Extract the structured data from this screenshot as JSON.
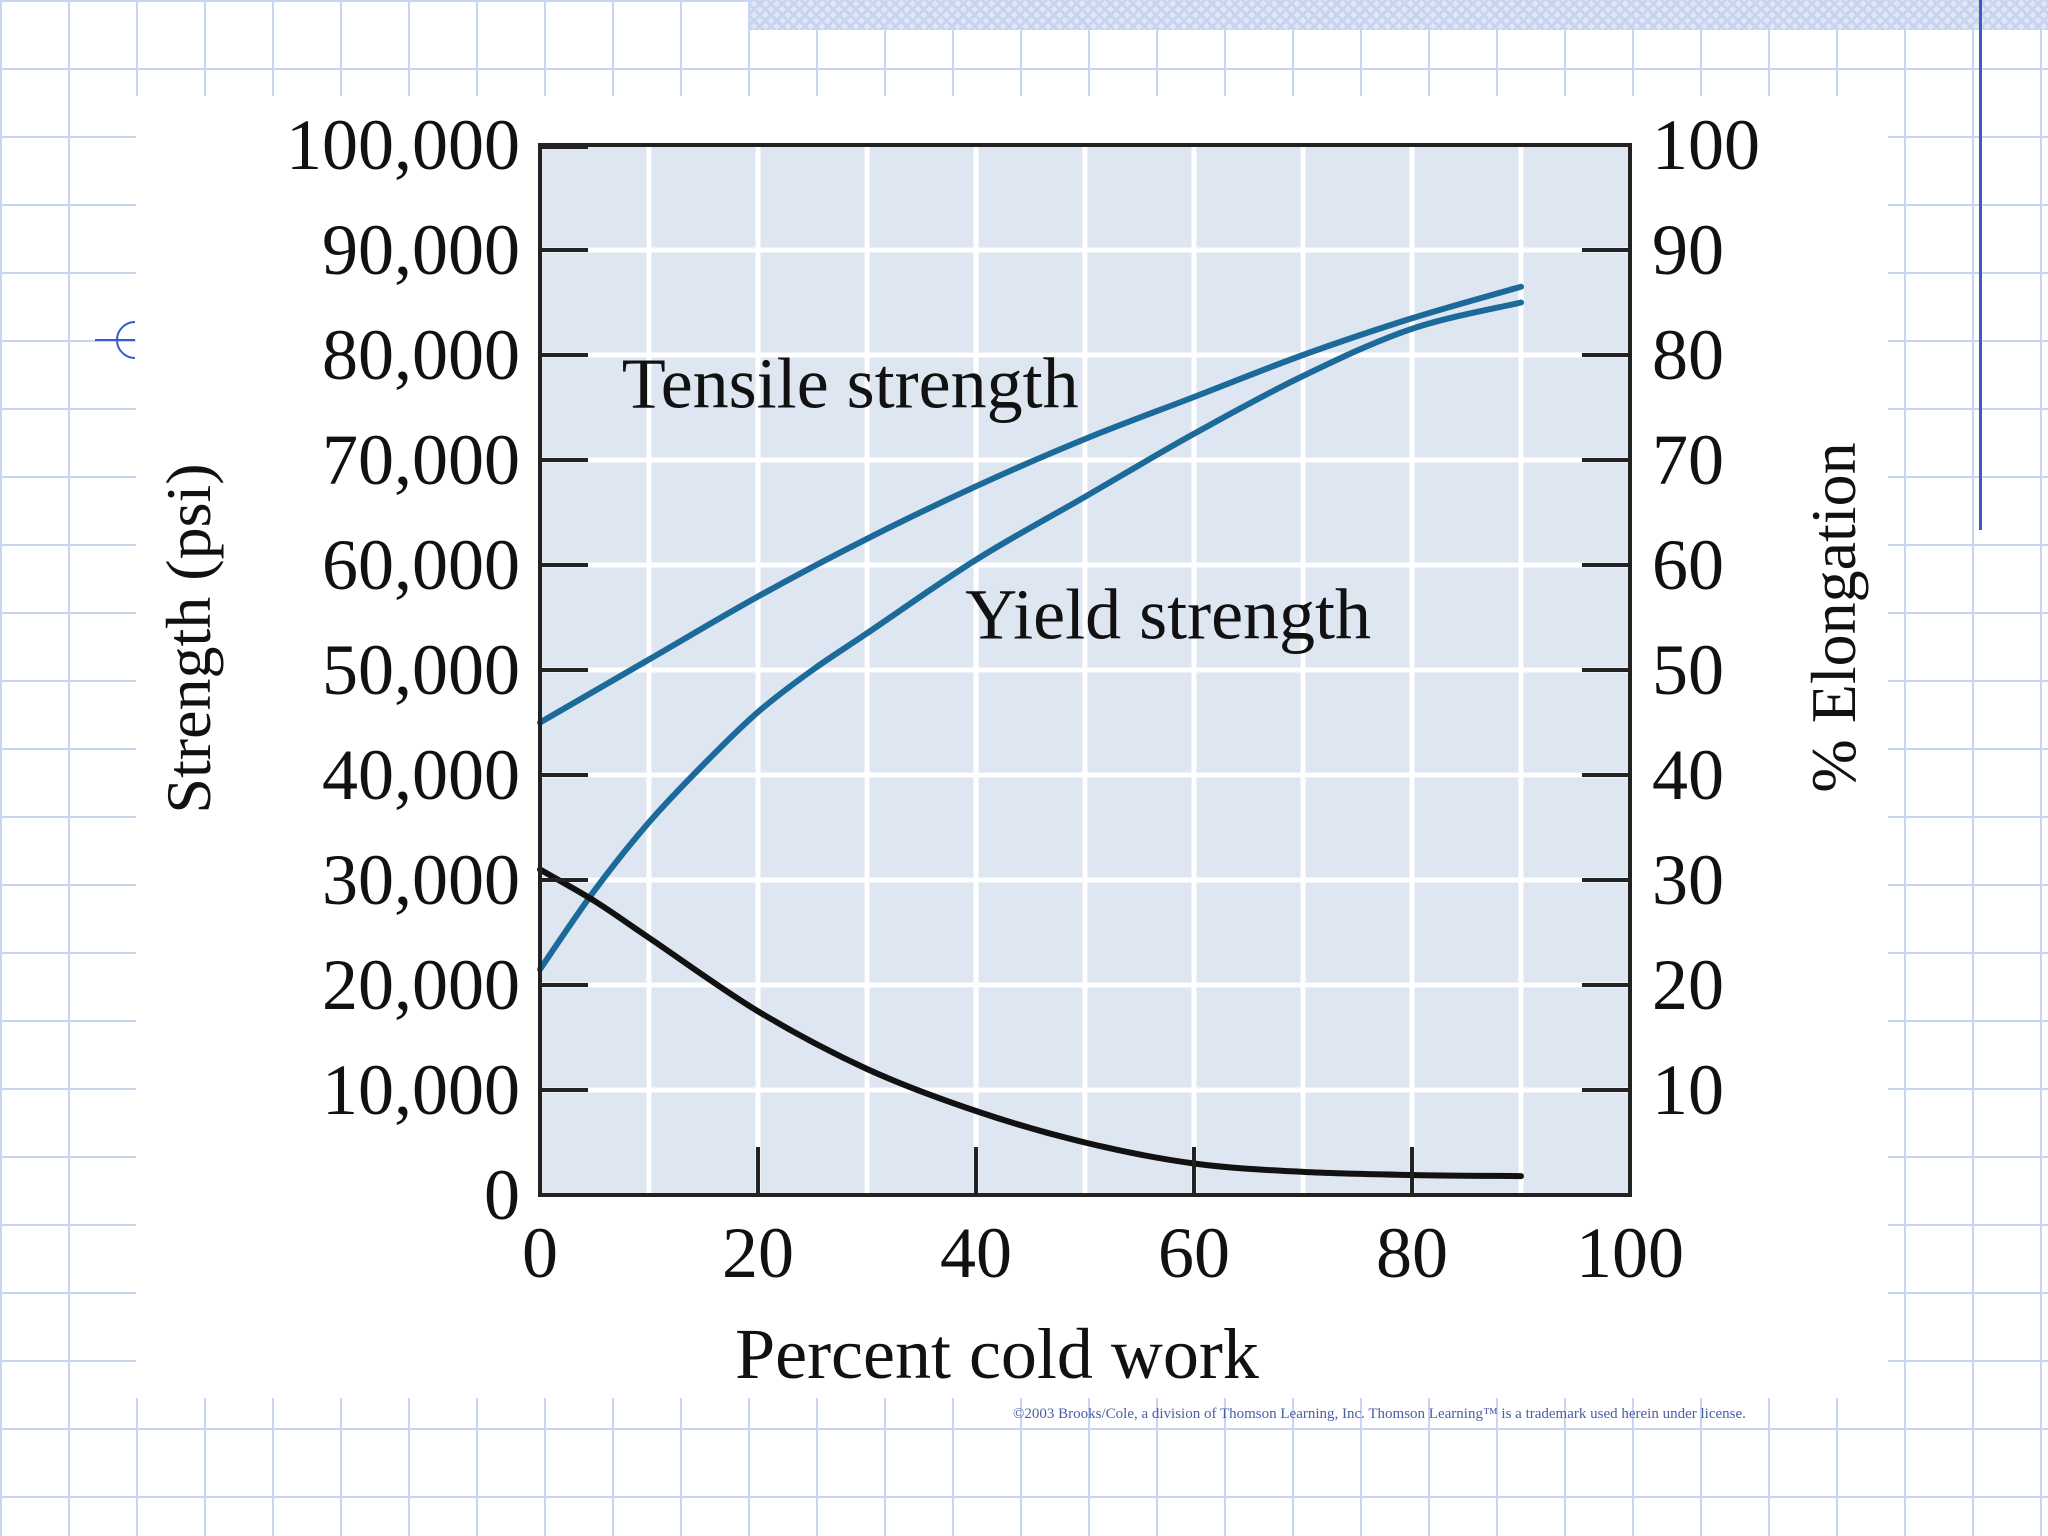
{
  "chart_data": {
    "type": "line",
    "title": "",
    "xlabel": "Percent cold work",
    "ylabel": "Strength (psi)",
    "y2label": "% Elongation",
    "xlim": [
      0,
      100
    ],
    "ylim": [
      0,
      100000
    ],
    "y2lim": [
      0,
      100
    ],
    "x_ticks": [
      0,
      20,
      40,
      60,
      80,
      100
    ],
    "x_tick_labels": [
      "0",
      "20",
      "40",
      "60",
      "80",
      "100"
    ],
    "y_ticks": [
      0,
      10000,
      20000,
      30000,
      40000,
      50000,
      60000,
      70000,
      80000,
      90000,
      100000
    ],
    "y_tick_labels": [
      "0",
      "10,000",
      "20,000",
      "30,000",
      "40,000",
      "50,000",
      "60,000",
      "70,000",
      "80,000",
      "90,000",
      "100,000"
    ],
    "y2_ticks": [
      10,
      20,
      30,
      40,
      50,
      60,
      70,
      80,
      90,
      100
    ],
    "y2_tick_labels": [
      "10",
      "20",
      "30",
      "40",
      "50",
      "60",
      "70",
      "80",
      "90",
      "100"
    ],
    "grid": true,
    "colors": {
      "plot_bg": "#dde6f1",
      "grid": "#ffffff",
      "strength": "#1b6a9a",
      "elongation": "#111111",
      "axis": "#222222",
      "text": "#111111"
    },
    "series": [
      {
        "name": "Tensile strength",
        "axis": "left",
        "label": "Tensile strength",
        "x": [
          0,
          10,
          20,
          30,
          40,
          50,
          60,
          70,
          80,
          90
        ],
        "y": [
          45000,
          51000,
          57000,
          62500,
          67500,
          72000,
          76000,
          80000,
          83500,
          86500
        ]
      },
      {
        "name": "Yield strength",
        "axis": "left",
        "label": "Yield strength",
        "x": [
          0,
          5,
          10,
          15,
          20,
          25,
          30,
          40,
          50,
          60,
          70,
          80,
          90
        ],
        "y": [
          21500,
          29000,
          35500,
          41000,
          46000,
          50000,
          53500,
          60500,
          66500,
          72500,
          78000,
          82500,
          85000
        ]
      },
      {
        "name": "% Elongation",
        "axis": "right",
        "label": "% Elongation",
        "x": [
          0,
          5,
          10,
          20,
          30,
          40,
          50,
          60,
          70,
          80,
          90
        ],
        "y": [
          31,
          28,
          24.5,
          17.5,
          12,
          8,
          5,
          3,
          2.2,
          1.9,
          1.8
        ]
      }
    ]
  },
  "copyright": "©2003 Brooks/Cole, a division of Thomson Learning, Inc.  Thomson Learning™ is a trademark used herein under license."
}
